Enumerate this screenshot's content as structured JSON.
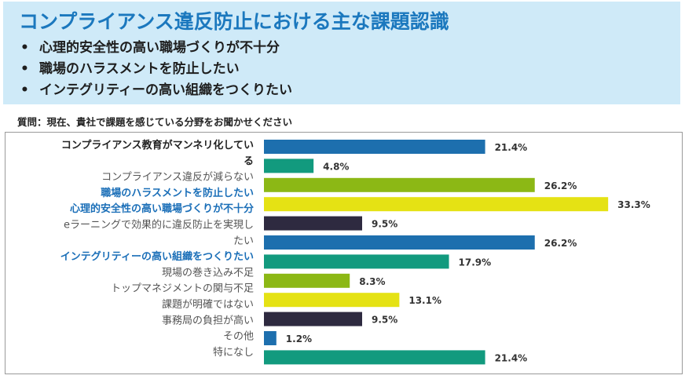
{
  "header": {
    "title": "コンプライアンス違反防止における主な課題認識",
    "bullets": [
      "心理的安全性の高い職場づくりが不十分",
      "職場のハラスメントを防止したい",
      "インテグリティーの高い組織をつくりたい"
    ],
    "bullet_glyph": "•"
  },
  "question": "質問：現在、貴社で課題を感じている分野をお聞かせください",
  "chart_data": {
    "type": "bar",
    "orientation": "horizontal",
    "value_suffix": "%",
    "xlim": [
      0,
      38
    ],
    "grid": false,
    "legend": "none",
    "categories": [
      {
        "label_lines": [
          "コンプライアンス教育がマンネリ化してい",
          "る"
        ],
        "value": 21.4,
        "value_label": "21.4%",
        "color": "#1d6fae",
        "style": "dark"
      },
      {
        "label_lines": [],
        "value": 4.8,
        "value_label": "4.8%",
        "color": "#129a7e",
        "style": "none"
      },
      {
        "label_lines": [
          "コンプライアンス違反が減らない"
        ],
        "value": 26.2,
        "value_label": "26.2%",
        "color": "#8cb815",
        "style": "gray"
      },
      {
        "label_lines": [
          "職場のハラスメントを防止したい"
        ],
        "value": 33.3,
        "value_label": "33.3%",
        "color": "#e5e214",
        "style": "blue"
      },
      {
        "label_lines": [
          "心理的安全性の高い職場づくりが不十分"
        ],
        "value": 9.5,
        "value_label": "9.5%",
        "color": "#2e2a40",
        "style": "blue"
      },
      {
        "label_lines": [
          "eラーニングで効果的に違反防止を実現し",
          "たい"
        ],
        "value": 26.2,
        "value_label": "26.2%",
        "color": "#1d6fae",
        "style": "gray"
      },
      {
        "label_lines": [
          "インテグリティーの高い組織をつくりたい"
        ],
        "value": 17.9,
        "value_label": "17.9%",
        "color": "#129a7e",
        "style": "blue"
      },
      {
        "label_lines": [
          "現場の巻き込み不足"
        ],
        "value": 8.3,
        "value_label": "8.3%",
        "color": "#8cb815",
        "style": "gray"
      },
      {
        "label_lines": [
          "トップマネジメントの関与不足"
        ],
        "value": 13.1,
        "value_label": "13.1%",
        "color": "#e5e214",
        "style": "gray"
      },
      {
        "label_lines": [
          "課題が明確ではない"
        ],
        "value": 9.5,
        "value_label": "9.5%",
        "color": "#2e2a40",
        "style": "gray"
      },
      {
        "label_lines": [
          "事務局の負担が高い"
        ],
        "value": 1.2,
        "value_label": "1.2%",
        "color": "#1d6fae",
        "style": "gray"
      },
      {
        "label_lines": [
          "その他"
        ],
        "value": 21.4,
        "value_label": "21.4%",
        "color": "#129a7e",
        "style": "gray"
      },
      {
        "label_lines": [
          "特になし"
        ],
        "value": null,
        "value_label": "",
        "color": "#129a7e",
        "style": "gray"
      }
    ]
  },
  "colors": {
    "header_bg": "#cfeaf8",
    "title": "#1b78be",
    "label_dark": "#222222",
    "label_gray": "#555555",
    "label_blue": "#1b6fb8"
  }
}
